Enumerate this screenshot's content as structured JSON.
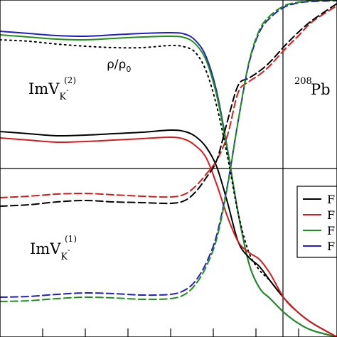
{
  "chart_data": {
    "type": "line",
    "title": "",
    "xlabel": "",
    "ylabel": "",
    "grid": false,
    "xlim": [
      0,
      474
    ],
    "ylim": [
      -474,
      0
    ],
    "reference_lines": {
      "vertical_x": 398,
      "horizontal_y": -237
    },
    "annotations": {
      "upper_group": {
        "main": "ImV",
        "sub": "K",
        "sup_charge": "-",
        "sup_index": "(2)"
      },
      "lower_group": {
        "main": "ImV",
        "sub": "K",
        "sup_charge": "-",
        "sup_index": "(1)"
      },
      "density": {
        "rho": "ρ",
        "slash": "/",
        "rho0": "ρ",
        "sub0": "0"
      },
      "nucleus": {
        "mass": "208",
        "symbol": "Pb"
      }
    },
    "legend": {
      "placement": "right",
      "entries": [
        {
          "label": "F",
          "color": "#000000"
        },
        {
          "label": "F",
          "color": "#d21e1e"
        },
        {
          "label": "F",
          "color": "#1f8f1f"
        },
        {
          "label": "F",
          "color": "#2020c0"
        }
      ]
    },
    "series": [
      {
        "color": "#2020c0",
        "dash": "solid",
        "x": [
          0,
          40,
          80,
          120,
          160,
          200,
          240,
          260,
          275,
          290,
          305,
          320,
          335,
          350,
          365,
          380,
          400,
          420,
          440,
          474
        ],
        "y": [
          -44,
          -47,
          -50,
          -51,
          -49,
          -47,
          -46,
          -48,
          -57,
          -80,
          -130,
          -210,
          -300,
          -370,
          -405,
          -420,
          -440,
          -455,
          -465,
          -474
        ]
      },
      {
        "color": "#1f8f1f",
        "dash": "solid",
        "x": [
          0,
          40,
          80,
          120,
          160,
          200,
          240,
          260,
          275,
          290,
          305,
          320,
          335,
          350,
          365,
          380,
          400,
          420,
          440,
          474
        ],
        "y": [
          -49,
          -52,
          -55,
          -56,
          -54,
          -52,
          -51,
          -53,
          -62,
          -85,
          -135,
          -212,
          -300,
          -370,
          -405,
          -420,
          -440,
          -455,
          -465,
          -474
        ]
      },
      {
        "color": "#000000",
        "dash": "dotted",
        "x": [
          0,
          40,
          80,
          120,
          160,
          200,
          240,
          260,
          275,
          290,
          305,
          320,
          335,
          350,
          365,
          380,
          400,
          420,
          440,
          474
        ],
        "y": [
          -56,
          -58,
          -62,
          -65,
          -67,
          -67,
          -64,
          -66,
          -74,
          -100,
          -150,
          -220,
          -300,
          -355,
          -380,
          -395,
          -420,
          -440,
          -455,
          -474
        ]
      },
      {
        "color": "#000000",
        "dash": "solid",
        "x": [
          0,
          40,
          80,
          120,
          160,
          200,
          240,
          260,
          275,
          290,
          305,
          320,
          335,
          350,
          365,
          380,
          400,
          420,
          440,
          474
        ],
        "y": [
          -185,
          -188,
          -191,
          -190,
          -188,
          -186,
          -183,
          -185,
          -192,
          -207,
          -235,
          -285,
          -340,
          -362,
          -375,
          -395,
          -420,
          -440,
          -455,
          -474
        ]
      },
      {
        "color": "#d21e1e",
        "dash": "solid",
        "x": [
          0,
          40,
          80,
          120,
          160,
          200,
          240,
          260,
          275,
          290,
          305,
          320,
          335,
          350,
          365,
          380,
          400,
          420,
          440,
          474
        ],
        "y": [
          -194,
          -197,
          -200,
          -199,
          -197,
          -195,
          -193,
          -196,
          -205,
          -222,
          -260,
          -305,
          -340,
          -355,
          -365,
          -385,
          -420,
          -440,
          -455,
          -474
        ]
      },
      {
        "color": "#d21e1e",
        "dash": "dashed",
        "x": [
          0,
          40,
          80,
          120,
          160,
          200,
          240,
          260,
          275,
          290,
          305,
          320,
          335,
          350,
          365,
          380,
          400,
          420,
          440,
          474
        ],
        "y": [
          -278,
          -276,
          -273,
          -272,
          -274,
          -276,
          -277,
          -273,
          -262,
          -245,
          -225,
          -190,
          -130,
          -115,
          -105,
          -92,
          -70,
          -50,
          -30,
          -8
        ]
      },
      {
        "color": "#000000",
        "dash": "dashed",
        "x": [
          0,
          40,
          80,
          120,
          160,
          200,
          240,
          260,
          275,
          290,
          305,
          320,
          335,
          350,
          365,
          380,
          400,
          420,
          440,
          474
        ],
        "y": [
          -290,
          -288,
          -284,
          -282,
          -284,
          -285,
          -286,
          -282,
          -270,
          -250,
          -225,
          -170,
          -120,
          -110,
          -100,
          -87,
          -65,
          -45,
          -28,
          -5
        ]
      },
      {
        "color": "#2020c0",
        "dash": "dashed",
        "x": [
          0,
          40,
          80,
          120,
          160,
          200,
          240,
          260,
          275,
          290,
          305,
          320,
          335,
          350,
          365,
          380,
          400,
          420,
          440,
          474
        ],
        "y": [
          -418,
          -417,
          -414,
          -412,
          -413,
          -415,
          -414,
          -408,
          -395,
          -370,
          -330,
          -260,
          -170,
          -90,
          -45,
          -25,
          -10,
          -4,
          -2,
          -1
        ]
      },
      {
        "color": "#1f8f1f",
        "dash": "dashed",
        "x": [
          0,
          40,
          80,
          120,
          160,
          200,
          240,
          260,
          275,
          290,
          305,
          320,
          335,
          350,
          365,
          380,
          400,
          420,
          440,
          474
        ],
        "y": [
          -424,
          -423,
          -420,
          -418,
          -419,
          -421,
          -420,
          -414,
          -400,
          -375,
          -335,
          -262,
          -170,
          -88,
          -42,
          -22,
          -8,
          -3,
          -1,
          0
        ]
      }
    ]
  }
}
